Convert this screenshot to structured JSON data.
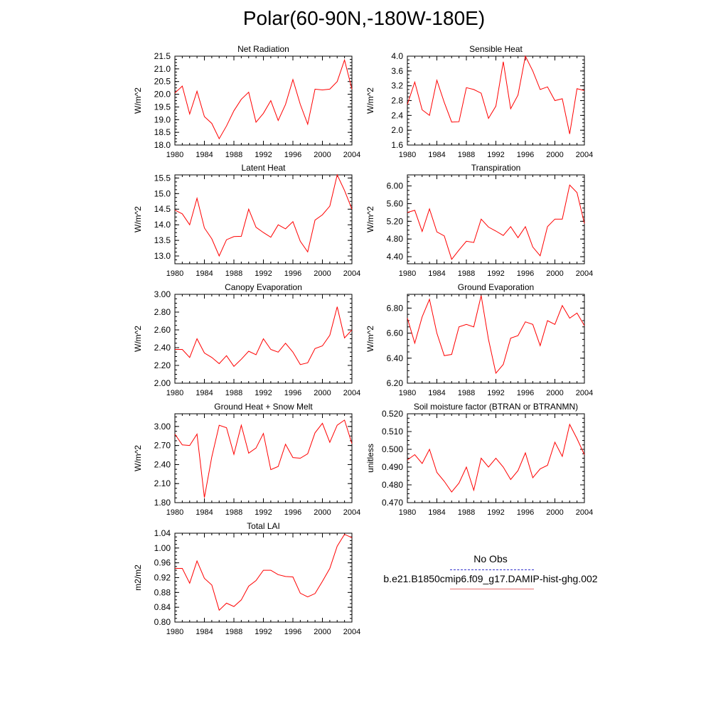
{
  "title": "Polar(60-90N,-180W-180E)",
  "legend": {
    "obs_label": "No Obs",
    "obs_color": "#3333cc",
    "case_label": "b.e21.B1850cmip6.f09_g17.DAMIP-hist-ghg.002",
    "case_color": "#ff0000"
  },
  "chart_data": [
    {
      "type": "line",
      "title": "Net Radiation",
      "ylabel": "W/m^2",
      "xlim": [
        1980,
        2004
      ],
      "ylim": [
        18.0,
        21.5
      ],
      "xticks": [
        "1980",
        "1984",
        "1988",
        "1992",
        "1996",
        "2000",
        "2004"
      ],
      "yticks": [
        "18.0",
        "18.5",
        "19.0",
        "19.5",
        "20.0",
        "20.5",
        "21.0",
        "21.5"
      ],
      "series": [
        {
          "color": "#ff0000",
          "x": [
            1980,
            1981,
            1982,
            1983,
            1984,
            1985,
            1986,
            1987,
            1988,
            1989,
            1990,
            1991,
            1992,
            1993,
            1994,
            1995,
            1996,
            1997,
            1998,
            1999,
            2000,
            2001,
            2002,
            2003,
            2004
          ],
          "values": [
            20.05,
            20.32,
            19.22,
            20.12,
            19.12,
            18.85,
            18.25,
            18.75,
            19.35,
            19.8,
            20.08,
            18.9,
            19.25,
            19.75,
            18.97,
            19.6,
            20.58,
            19.6,
            18.82,
            20.2,
            20.17,
            20.2,
            20.5,
            21.35,
            20.2
          ]
        }
      ]
    },
    {
      "type": "line",
      "title": "Sensible Heat",
      "ylabel": "W/m^2",
      "xlim": [
        1980,
        2004
      ],
      "ylim": [
        1.6,
        4.0
      ],
      "xticks": [
        "1980",
        "1984",
        "1988",
        "1992",
        "1996",
        "2000",
        "2004"
      ],
      "yticks": [
        "1.6",
        "2.0",
        "2.4",
        "2.8",
        "3.2",
        "3.6",
        "4.0"
      ],
      "series": [
        {
          "color": "#ff0000",
          "x": [
            1980,
            1981,
            1982,
            1983,
            1984,
            1985,
            1986,
            1987,
            1988,
            1989,
            1990,
            1991,
            1992,
            1993,
            1994,
            1995,
            1996,
            1997,
            1998,
            1999,
            2000,
            2001,
            2002,
            2003,
            2004
          ],
          "values": [
            2.7,
            3.3,
            2.55,
            2.4,
            3.35,
            2.75,
            2.22,
            2.23,
            3.15,
            3.1,
            3.0,
            2.32,
            2.65,
            3.85,
            2.58,
            2.95,
            4.0,
            3.6,
            3.1,
            3.17,
            2.8,
            2.85,
            1.9,
            3.12,
            3.07
          ]
        }
      ]
    },
    {
      "type": "line",
      "title": "Latent Heat",
      "ylabel": "W/m^2",
      "xlim": [
        1980,
        2004
      ],
      "ylim": [
        12.75,
        15.6
      ],
      "xticks": [
        "1980",
        "1984",
        "1988",
        "1992",
        "1996",
        "2000",
        "2004"
      ],
      "yticks": [
        "13.0",
        "13.5",
        "14.0",
        "14.5",
        "15.0",
        "15.5"
      ],
      "series": [
        {
          "color": "#ff0000",
          "x": [
            1980,
            1981,
            1982,
            1983,
            1984,
            1985,
            1986,
            1987,
            1988,
            1989,
            1990,
            1991,
            1992,
            1993,
            1994,
            1995,
            1996,
            1997,
            1998,
            1999,
            2000,
            2001,
            2002,
            2003,
            2004
          ],
          "values": [
            14.47,
            14.35,
            14.0,
            14.85,
            13.9,
            13.55,
            13.0,
            13.52,
            13.62,
            13.63,
            14.5,
            13.92,
            13.75,
            13.6,
            14.0,
            13.87,
            14.1,
            13.47,
            13.13,
            14.15,
            14.32,
            14.6,
            15.6,
            15.1,
            14.5
          ]
        }
      ]
    },
    {
      "type": "line",
      "title": "Transpiration",
      "ylabel": "W/m^2",
      "xlim": [
        1980,
        2004
      ],
      "ylim": [
        4.24,
        6.25
      ],
      "xticks": [
        "1980",
        "1984",
        "1988",
        "1992",
        "1996",
        "2000",
        "2004"
      ],
      "yticks": [
        "4.40",
        "4.80",
        "5.20",
        "5.60",
        "6.00"
      ],
      "series": [
        {
          "color": "#ff0000",
          "x": [
            1980,
            1981,
            1982,
            1983,
            1984,
            1985,
            1986,
            1987,
            1988,
            1989,
            1990,
            1991,
            1992,
            1993,
            1994,
            1995,
            1996,
            1997,
            1998,
            1999,
            2000,
            2001,
            2002,
            2003,
            2004
          ],
          "values": [
            5.4,
            5.45,
            4.97,
            5.48,
            4.96,
            4.87,
            4.34,
            4.55,
            4.75,
            4.72,
            5.25,
            5.07,
            4.98,
            4.88,
            5.08,
            4.83,
            5.08,
            4.62,
            4.42,
            5.08,
            5.25,
            5.25,
            6.02,
            5.85,
            5.15
          ]
        }
      ]
    },
    {
      "type": "line",
      "title": "Canopy Evaporation",
      "ylabel": "W/m^2",
      "xlim": [
        1980,
        2004
      ],
      "ylim": [
        2.0,
        3.0
      ],
      "xticks": [
        "1980",
        "1984",
        "1988",
        "1992",
        "1996",
        "2000",
        "2004"
      ],
      "yticks": [
        "2.00",
        "2.20",
        "2.40",
        "2.60",
        "2.80",
        "3.00"
      ],
      "series": [
        {
          "color": "#ff0000",
          "x": [
            1980,
            1981,
            1982,
            1983,
            1984,
            1985,
            1986,
            1987,
            1988,
            1989,
            1990,
            1991,
            1992,
            1993,
            1994,
            1995,
            1996,
            1997,
            1998,
            1999,
            2000,
            2001,
            2002,
            2003,
            2004
          ],
          "values": [
            2.38,
            2.38,
            2.29,
            2.5,
            2.34,
            2.29,
            2.22,
            2.31,
            2.19,
            2.27,
            2.36,
            2.32,
            2.5,
            2.38,
            2.35,
            2.45,
            2.35,
            2.21,
            2.23,
            2.39,
            2.42,
            2.54,
            2.86,
            2.51,
            2.6
          ]
        }
      ]
    },
    {
      "type": "line",
      "title": "Ground Evaporation",
      "ylabel": "W/m^2",
      "xlim": [
        1980,
        2004
      ],
      "ylim": [
        6.2,
        6.91
      ],
      "xticks": [
        "1980",
        "1984",
        "1988",
        "1992",
        "1996",
        "2000",
        "2004"
      ],
      "yticks": [
        "6.20",
        "6.40",
        "6.60",
        "6.80"
      ],
      "series": [
        {
          "color": "#ff0000",
          "x": [
            1980,
            1981,
            1982,
            1983,
            1984,
            1985,
            1986,
            1987,
            1988,
            1989,
            1990,
            1991,
            1992,
            1993,
            1994,
            1995,
            1996,
            1997,
            1998,
            1999,
            2000,
            2001,
            2002,
            2003,
            2004
          ],
          "values": [
            6.72,
            6.52,
            6.73,
            6.87,
            6.6,
            6.42,
            6.43,
            6.65,
            6.67,
            6.65,
            6.9,
            6.55,
            6.28,
            6.35,
            6.56,
            6.58,
            6.69,
            6.67,
            6.5,
            6.7,
            6.67,
            6.82,
            6.72,
            6.76,
            6.66
          ]
        }
      ]
    },
    {
      "type": "line",
      "title": "Ground Heat + Snow Melt",
      "ylabel": "W/m^2",
      "xlim": [
        1980,
        2004
      ],
      "ylim": [
        1.8,
        3.2
      ],
      "xticks": [
        "1980",
        "1984",
        "1988",
        "1992",
        "1996",
        "2000",
        "2004"
      ],
      "yticks": [
        "1.80",
        "2.10",
        "2.40",
        "2.70",
        "3.00"
      ],
      "series": [
        {
          "color": "#ff0000",
          "x": [
            1980,
            1981,
            1982,
            1983,
            1984,
            1985,
            1986,
            1987,
            1988,
            1989,
            1990,
            1991,
            1992,
            1993,
            1994,
            1995,
            1996,
            1997,
            1998,
            1999,
            2000,
            2001,
            2002,
            2003,
            2004
          ],
          "values": [
            2.88,
            2.71,
            2.7,
            2.88,
            1.88,
            2.52,
            3.02,
            2.98,
            2.56,
            3.02,
            2.58,
            2.66,
            2.89,
            2.32,
            2.37,
            2.72,
            2.51,
            2.5,
            2.57,
            2.9,
            3.05,
            2.75,
            3.02,
            3.1,
            2.73
          ]
        }
      ]
    },
    {
      "type": "line",
      "title": "Soil moisture factor (BTRAN or BTRANMN)",
      "ylabel": "unitless",
      "xlim": [
        1980,
        2004
      ],
      "ylim": [
        0.47,
        0.52
      ],
      "xticks": [
        "1980",
        "1984",
        "1988",
        "1992",
        "1996",
        "2000",
        "2004"
      ],
      "yticks": [
        "0.470",
        "0.480",
        "0.490",
        "0.500",
        "0.510",
        "0.520"
      ],
      "series": [
        {
          "color": "#ff0000",
          "x": [
            1980,
            1981,
            1982,
            1983,
            1984,
            1985,
            1986,
            1987,
            1988,
            1989,
            1990,
            1991,
            1992,
            1993,
            1994,
            1995,
            1996,
            1997,
            1998,
            1999,
            2000,
            2001,
            2002,
            2003,
            2004
          ],
          "values": [
            0.494,
            0.497,
            0.492,
            0.5,
            0.487,
            0.482,
            0.476,
            0.481,
            0.49,
            0.477,
            0.495,
            0.49,
            0.495,
            0.49,
            0.483,
            0.488,
            0.498,
            0.484,
            0.489,
            0.491,
            0.504,
            0.496,
            0.514,
            0.506,
            0.497
          ]
        }
      ]
    },
    {
      "type": "line",
      "title": "Total LAI",
      "ylabel": "m2/m2",
      "xlim": [
        1980,
        2004
      ],
      "ylim": [
        0.8,
        1.04
      ],
      "xticks": [
        "1980",
        "1984",
        "1988",
        "1992",
        "1996",
        "2000",
        "2004"
      ],
      "yticks": [
        "0.80",
        "0.84",
        "0.88",
        "0.92",
        "0.96",
        "1.00",
        "1.04"
      ],
      "series": [
        {
          "color": "#ff0000",
          "x": [
            1980,
            1981,
            1982,
            1983,
            1984,
            1985,
            1986,
            1987,
            1988,
            1989,
            1990,
            1991,
            1992,
            1993,
            1994,
            1995,
            1996,
            1997,
            1998,
            1999,
            2000,
            2001,
            2002,
            2003,
            2004
          ],
          "values": [
            0.945,
            0.945,
            0.905,
            0.965,
            0.918,
            0.9,
            0.832,
            0.851,
            0.842,
            0.86,
            0.897,
            0.912,
            0.94,
            0.94,
            0.928,
            0.923,
            0.922,
            0.878,
            0.868,
            0.877,
            0.91,
            0.945,
            1.005,
            1.037,
            1.028
          ]
        }
      ]
    }
  ]
}
